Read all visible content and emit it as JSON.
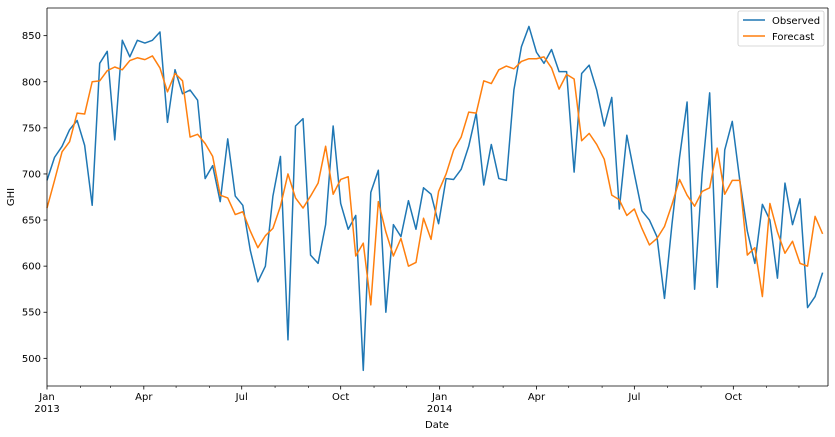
{
  "chart_data": {
    "type": "line",
    "xlabel": "Date",
    "ylabel": "GHI",
    "ylim": [
      470,
      880
    ],
    "yticks": [
      500,
      550,
      600,
      650,
      700,
      750,
      800,
      850
    ],
    "xlim": [
      "2013-01-01",
      "2014-12-28"
    ],
    "xticks": [
      {
        "date": "2013-01-01",
        "label": "Jan",
        "sub": "2013"
      },
      {
        "date": "2013-04-01",
        "label": "Apr",
        "sub": ""
      },
      {
        "date": "2013-07-01",
        "label": "Jul",
        "sub": ""
      },
      {
        "date": "2013-10-01",
        "label": "Oct",
        "sub": ""
      },
      {
        "date": "2014-01-01",
        "label": "Jan",
        "sub": "2014"
      },
      {
        "date": "2014-04-01",
        "label": "Apr",
        "sub": ""
      },
      {
        "date": "2014-07-01",
        "label": "Jul",
        "sub": ""
      },
      {
        "date": "2014-10-01",
        "label": "Oct",
        "sub": ""
      }
    ],
    "legend_position": "top-right",
    "grid": false,
    "series": [
      {
        "name": "Observed",
        "color": "#1f77b4",
        "points": [
          [
            "2013-01-01",
            693
          ],
          [
            "2013-01-08",
            718
          ],
          [
            "2013-01-15",
            730
          ],
          [
            "2013-01-22",
            748
          ],
          [
            "2013-01-29",
            758
          ],
          [
            "2013-02-05",
            731
          ],
          [
            "2013-02-12",
            666
          ],
          [
            "2013-02-19",
            820
          ],
          [
            "2013-02-26",
            833
          ],
          [
            "2013-03-05",
            737
          ],
          [
            "2013-03-12",
            845
          ],
          [
            "2013-03-19",
            827
          ],
          [
            "2013-03-26",
            845
          ],
          [
            "2013-04-02",
            842
          ],
          [
            "2013-04-09",
            845
          ],
          [
            "2013-04-16",
            854
          ],
          [
            "2013-04-23",
            756
          ],
          [
            "2013-04-30",
            813
          ],
          [
            "2013-05-07",
            787
          ],
          [
            "2013-05-14",
            791
          ],
          [
            "2013-05-21",
            780
          ],
          [
            "2013-05-28",
            695
          ],
          [
            "2013-06-04",
            709
          ],
          [
            "2013-06-11",
            670
          ],
          [
            "2013-06-18",
            738
          ],
          [
            "2013-06-25",
            676
          ],
          [
            "2013-07-02",
            666
          ],
          [
            "2013-07-09",
            617
          ],
          [
            "2013-07-16",
            583
          ],
          [
            "2013-07-23",
            600
          ],
          [
            "2013-07-30",
            676
          ],
          [
            "2013-08-06",
            719
          ],
          [
            "2013-08-13",
            520
          ],
          [
            "2013-08-20",
            752
          ],
          [
            "2013-08-27",
            760
          ],
          [
            "2013-09-03",
            612
          ],
          [
            "2013-09-10",
            603
          ],
          [
            "2013-09-17",
            645
          ],
          [
            "2013-09-24",
            752
          ],
          [
            "2013-10-01",
            668
          ],
          [
            "2013-10-08",
            640
          ],
          [
            "2013-10-15",
            655
          ],
          [
            "2013-10-22",
            487
          ],
          [
            "2013-10-29",
            680
          ],
          [
            "2013-11-05",
            704
          ],
          [
            "2013-11-12",
            550
          ],
          [
            "2013-11-19",
            645
          ],
          [
            "2013-11-26",
            632
          ],
          [
            "2013-12-03",
            671
          ],
          [
            "2013-12-10",
            640
          ],
          [
            "2013-12-17",
            685
          ],
          [
            "2013-12-24",
            678
          ],
          [
            "2013-12-31",
            646
          ],
          [
            "2014-01-07",
            695
          ],
          [
            "2014-01-14",
            694
          ],
          [
            "2014-01-21",
            705
          ],
          [
            "2014-01-28",
            730
          ],
          [
            "2014-02-04",
            766
          ],
          [
            "2014-02-11",
            688
          ],
          [
            "2014-02-18",
            732
          ],
          [
            "2014-02-25",
            695
          ],
          [
            "2014-03-04",
            693
          ],
          [
            "2014-03-11",
            791
          ],
          [
            "2014-03-18",
            838
          ],
          [
            "2014-03-25",
            860
          ],
          [
            "2014-04-01",
            832
          ],
          [
            "2014-04-08",
            820
          ],
          [
            "2014-04-15",
            835
          ],
          [
            "2014-04-22",
            811
          ],
          [
            "2014-04-29",
            811
          ],
          [
            "2014-05-06",
            702
          ],
          [
            "2014-05-13",
            809
          ],
          [
            "2014-05-20",
            818
          ],
          [
            "2014-05-27",
            791
          ],
          [
            "2014-06-03",
            752
          ],
          [
            "2014-06-10",
            783
          ],
          [
            "2014-06-17",
            662
          ],
          [
            "2014-06-24",
            742
          ],
          [
            "2014-07-01",
            700
          ],
          [
            "2014-07-08",
            660
          ],
          [
            "2014-07-15",
            650
          ],
          [
            "2014-07-22",
            632
          ],
          [
            "2014-07-29",
            565
          ],
          [
            "2014-08-05",
            646
          ],
          [
            "2014-08-12",
            718
          ],
          [
            "2014-08-19",
            778
          ],
          [
            "2014-08-26",
            575
          ],
          [
            "2014-09-02",
            700
          ],
          [
            "2014-09-09",
            788
          ],
          [
            "2014-09-16",
            577
          ],
          [
            "2014-09-23",
            726
          ],
          [
            "2014-09-30",
            757
          ],
          [
            "2014-10-07",
            693
          ],
          [
            "2014-10-14",
            638
          ],
          [
            "2014-10-21",
            603
          ],
          [
            "2014-10-28",
            667
          ],
          [
            "2014-11-04",
            650
          ],
          [
            "2014-11-11",
            587
          ],
          [
            "2014-11-18",
            690
          ],
          [
            "2014-11-25",
            645
          ],
          [
            "2014-12-02",
            673
          ],
          [
            "2014-12-09",
            555
          ],
          [
            "2014-12-16",
            567
          ],
          [
            "2014-12-23",
            593
          ]
        ]
      },
      {
        "name": "Forecast",
        "color": "#ff7f0e",
        "points": [
          [
            "2013-01-01",
            663
          ],
          [
            "2013-01-08",
            693
          ],
          [
            "2013-01-15",
            724
          ],
          [
            "2013-01-22",
            735
          ],
          [
            "2013-01-29",
            766
          ],
          [
            "2013-02-05",
            765
          ],
          [
            "2013-02-12",
            800
          ],
          [
            "2013-02-19",
            801
          ],
          [
            "2013-02-26",
            812
          ],
          [
            "2013-03-05",
            816
          ],
          [
            "2013-03-12",
            813
          ],
          [
            "2013-03-19",
            823
          ],
          [
            "2013-03-26",
            826
          ],
          [
            "2013-04-02",
            824
          ],
          [
            "2013-04-09",
            828
          ],
          [
            "2013-04-16",
            815
          ],
          [
            "2013-04-23",
            789
          ],
          [
            "2013-04-30",
            809
          ],
          [
            "2013-05-07",
            801
          ],
          [
            "2013-05-14",
            740
          ],
          [
            "2013-05-21",
            743
          ],
          [
            "2013-05-28",
            733
          ],
          [
            "2013-06-04",
            719
          ],
          [
            "2013-06-11",
            677
          ],
          [
            "2013-06-18",
            674
          ],
          [
            "2013-06-25",
            656
          ],
          [
            "2013-07-02",
            659
          ],
          [
            "2013-07-09",
            638
          ],
          [
            "2013-07-16",
            620
          ],
          [
            "2013-07-23",
            633
          ],
          [
            "2013-07-30",
            641
          ],
          [
            "2013-08-06",
            665
          ],
          [
            "2013-08-13",
            700
          ],
          [
            "2013-08-20",
            674
          ],
          [
            "2013-08-27",
            663
          ],
          [
            "2013-09-03",
            676
          ],
          [
            "2013-09-10",
            690
          ],
          [
            "2013-09-17",
            730
          ],
          [
            "2013-09-24",
            678
          ],
          [
            "2013-10-01",
            694
          ],
          [
            "2013-10-08",
            697
          ],
          [
            "2013-10-15",
            611
          ],
          [
            "2013-10-22",
            625
          ],
          [
            "2013-10-29",
            558
          ],
          [
            "2013-11-05",
            670
          ],
          [
            "2013-11-12",
            637
          ],
          [
            "2013-11-19",
            611
          ],
          [
            "2013-11-26",
            630
          ],
          [
            "2013-12-03",
            600
          ],
          [
            "2013-12-10",
            604
          ],
          [
            "2013-12-17",
            652
          ],
          [
            "2013-12-24",
            629
          ],
          [
            "2013-12-31",
            681
          ],
          [
            "2014-01-07",
            700
          ],
          [
            "2014-01-14",
            726
          ],
          [
            "2014-01-21",
            740
          ],
          [
            "2014-01-28",
            767
          ],
          [
            "2014-02-04",
            766
          ],
          [
            "2014-02-11",
            801
          ],
          [
            "2014-02-18",
            798
          ],
          [
            "2014-02-25",
            813
          ],
          [
            "2014-03-04",
            817
          ],
          [
            "2014-03-11",
            814
          ],
          [
            "2014-03-18",
            822
          ],
          [
            "2014-03-25",
            825
          ],
          [
            "2014-04-01",
            825
          ],
          [
            "2014-04-08",
            827
          ],
          [
            "2014-04-15",
            815
          ],
          [
            "2014-04-22",
            792
          ],
          [
            "2014-04-29",
            808
          ],
          [
            "2014-05-06",
            803
          ],
          [
            "2014-05-13",
            736
          ],
          [
            "2014-05-20",
            744
          ],
          [
            "2014-05-27",
            732
          ],
          [
            "2014-06-03",
            716
          ],
          [
            "2014-06-10",
            677
          ],
          [
            "2014-06-17",
            672
          ],
          [
            "2014-06-24",
            655
          ],
          [
            "2014-07-01",
            662
          ],
          [
            "2014-07-08",
            641
          ],
          [
            "2014-07-15",
            623
          ],
          [
            "2014-07-22",
            630
          ],
          [
            "2014-07-29",
            643
          ],
          [
            "2014-08-05",
            667
          ],
          [
            "2014-08-12",
            694
          ],
          [
            "2014-08-19",
            677
          ],
          [
            "2014-08-26",
            665
          ],
          [
            "2014-09-02",
            681
          ],
          [
            "2014-09-09",
            685
          ],
          [
            "2014-09-16",
            728
          ],
          [
            "2014-09-23",
            678
          ],
          [
            "2014-09-30",
            693
          ],
          [
            "2014-10-07",
            693
          ],
          [
            "2014-10-14",
            612
          ],
          [
            "2014-10-21",
            620
          ],
          [
            "2014-10-28",
            567
          ],
          [
            "2014-11-04",
            668
          ],
          [
            "2014-11-11",
            637
          ],
          [
            "2014-11-18",
            614
          ],
          [
            "2014-11-25",
            627
          ],
          [
            "2014-12-02",
            603
          ],
          [
            "2014-12-09",
            600
          ],
          [
            "2014-12-16",
            654
          ],
          [
            "2014-12-23",
            635
          ]
        ]
      }
    ]
  }
}
